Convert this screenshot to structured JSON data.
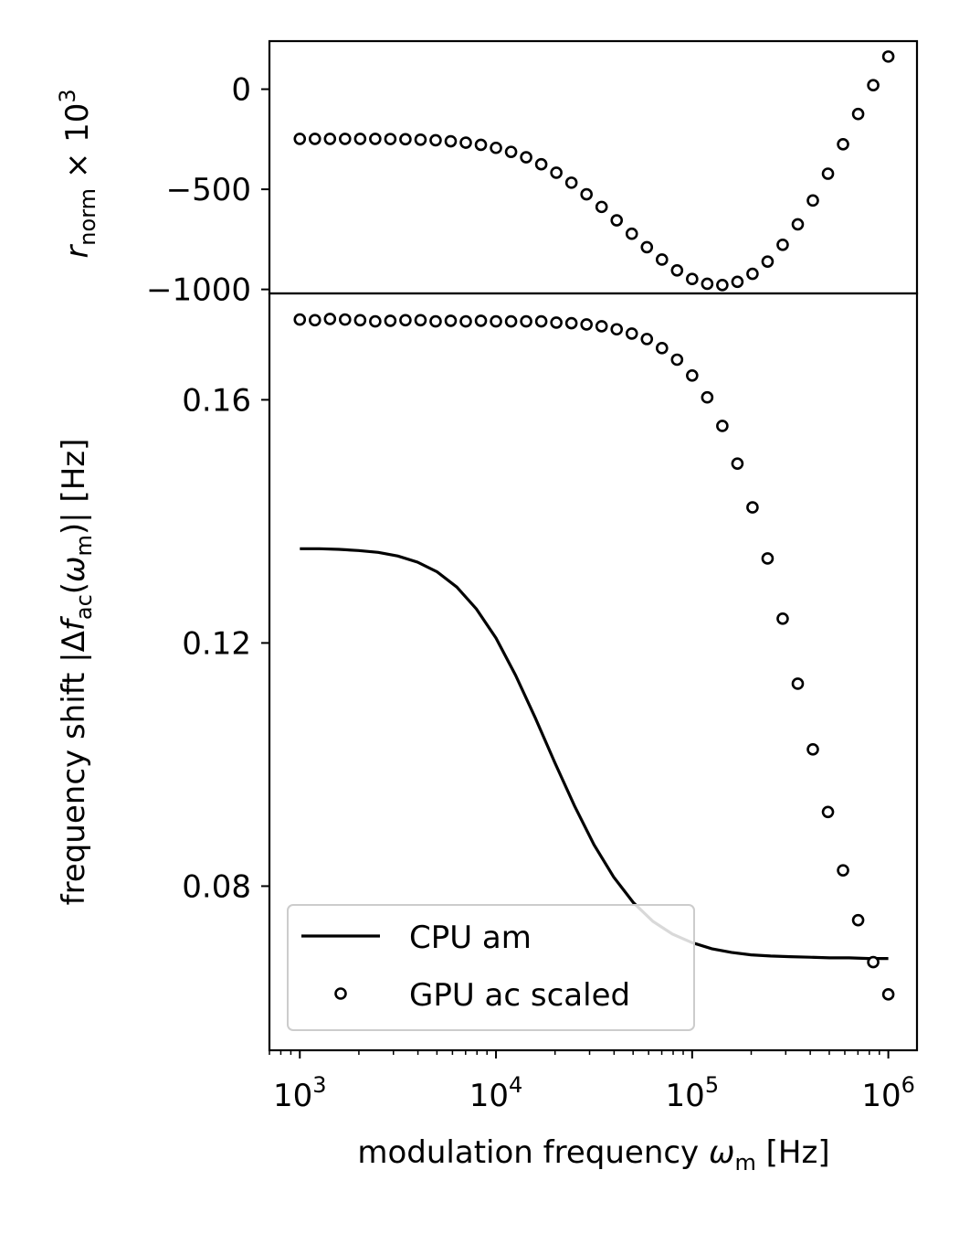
{
  "chart_data": [
    {
      "type": "scatter",
      "panel": "top",
      "ylabel": {
        "main": "r",
        "sub": "norm",
        "mult": " × 10",
        "exp": "3"
      },
      "xscale": "log",
      "xlim": [
        700,
        1400000
      ],
      "ylim": [
        -1020,
        240
      ],
      "yticks": [
        0,
        -500,
        -1000
      ],
      "ytick_labels": [
        "0",
        "−500",
        "−1000"
      ],
      "series": [
        {
          "marker": "circle-open",
          "x": [
            1000,
            1194,
            1425,
            1701,
            2031,
            2424,
            2894,
            3455,
            4125,
            4924,
            5878,
            7017,
            8377,
            10000,
            11938,
            14251,
            17013,
            20310,
            24246,
            28945,
            34551,
            41246,
            49239,
            58780,
            70170,
            83768,
            100000,
            119378,
            142510,
            170125,
            203092,
            242446,
            289427,
            345510,
            412463,
            492388,
            587802,
            701704,
            837678,
            1000000
          ],
          "y": [
            -248,
            -248,
            -248,
            -248,
            -248,
            -248,
            -249,
            -250,
            -252,
            -255,
            -260,
            -267,
            -278,
            -293,
            -313,
            -340,
            -375,
            -417,
            -467,
            -525,
            -588,
            -655,
            -722,
            -789,
            -851,
            -905,
            -948,
            -972,
            -978,
            -962,
            -922,
            -861,
            -777,
            -675,
            -556,
            -422,
            -275,
            -124,
            20,
            163
          ]
        }
      ]
    },
    {
      "type": "line",
      "panel": "bottom",
      "xlabel": {
        "main": "modulation frequency ",
        "sym": "ω",
        "sub": "m",
        "tail": " [Hz]"
      },
      "ylabel": {
        "pre": "frequency shift |Δ",
        "f": "f",
        "sub1": "ac",
        "mid": "(",
        "w": "ω",
        "sub2": "m",
        "post": ")| [Hz]"
      },
      "xscale": "log",
      "xlim": [
        700,
        1400000
      ],
      "ylim": [
        0.053,
        0.1775
      ],
      "xticks": [
        1000,
        10000,
        100000,
        1000000
      ],
      "xtick_labels": [
        {
          "base": "10",
          "exp": "3"
        },
        {
          "base": "10",
          "exp": "4"
        },
        {
          "base": "10",
          "exp": "5"
        },
        {
          "base": "10",
          "exp": "6"
        }
      ],
      "yticks": [
        0.08,
        0.12,
        0.16
      ],
      "ytick_labels": [
        "0.08",
        "0.12",
        "0.16"
      ],
      "legend": {
        "position": "lower-left",
        "labels": [
          "CPU am",
          "GPU ac scaled"
        ]
      },
      "series": [
        {
          "name": "CPU am",
          "style": "solid-line",
          "x": [
            1000,
            1259,
            1585,
            1995,
            2512,
            3162,
            3981,
            5012,
            6310,
            7943,
            10000,
            12589,
            15849,
            19953,
            25119,
            31623,
            39811,
            50119,
            63096,
            79433,
            100000,
            125893,
            158489,
            199526,
            251189,
            316228,
            398107,
            501187,
            630957,
            794328,
            1000000
          ],
          "y": [
            0.1355,
            0.1355,
            0.1354,
            0.1352,
            0.1349,
            0.1343,
            0.1333,
            0.1317,
            0.1292,
            0.1256,
            0.1208,
            0.1147,
            0.1077,
            0.1003,
            0.0932,
            0.0868,
            0.0815,
            0.0773,
            0.0742,
            0.0721,
            0.0707,
            0.0697,
            0.0691,
            0.0687,
            0.0685,
            0.0684,
            0.0683,
            0.0682,
            0.0682,
            0.0681,
            0.0681
          ]
        },
        {
          "name": "GPU ac scaled",
          "style": "circle-open",
          "x": [
            1000,
            1194,
            1425,
            1701,
            2031,
            2424,
            2894,
            3455,
            4125,
            4924,
            5878,
            7017,
            8377,
            10000,
            11938,
            14251,
            17013,
            20310,
            24246,
            28945,
            34551,
            41246,
            49239,
            58780,
            70170,
            83768,
            100000,
            119378,
            142510,
            170125,
            203092,
            242446,
            289427,
            345510,
            412463,
            492388,
            587802,
            701704,
            837678,
            1000000
          ],
          "y": [
            0.1732,
            0.1731,
            0.1733,
            0.1732,
            0.1731,
            0.1729,
            0.173,
            0.1731,
            0.1731,
            0.1729,
            0.173,
            0.1729,
            0.173,
            0.1729,
            0.1729,
            0.1729,
            0.1729,
            0.1727,
            0.1726,
            0.1724,
            0.1721,
            0.1716,
            0.1709,
            0.17,
            0.1685,
            0.1666,
            0.164,
            0.1604,
            0.1557,
            0.1495,
            0.1423,
            0.1339,
            0.124,
            0.1133,
            0.1025,
            0.0922,
            0.0826,
            0.0744,
            0.0675,
            0.0622
          ]
        }
      ]
    }
  ]
}
